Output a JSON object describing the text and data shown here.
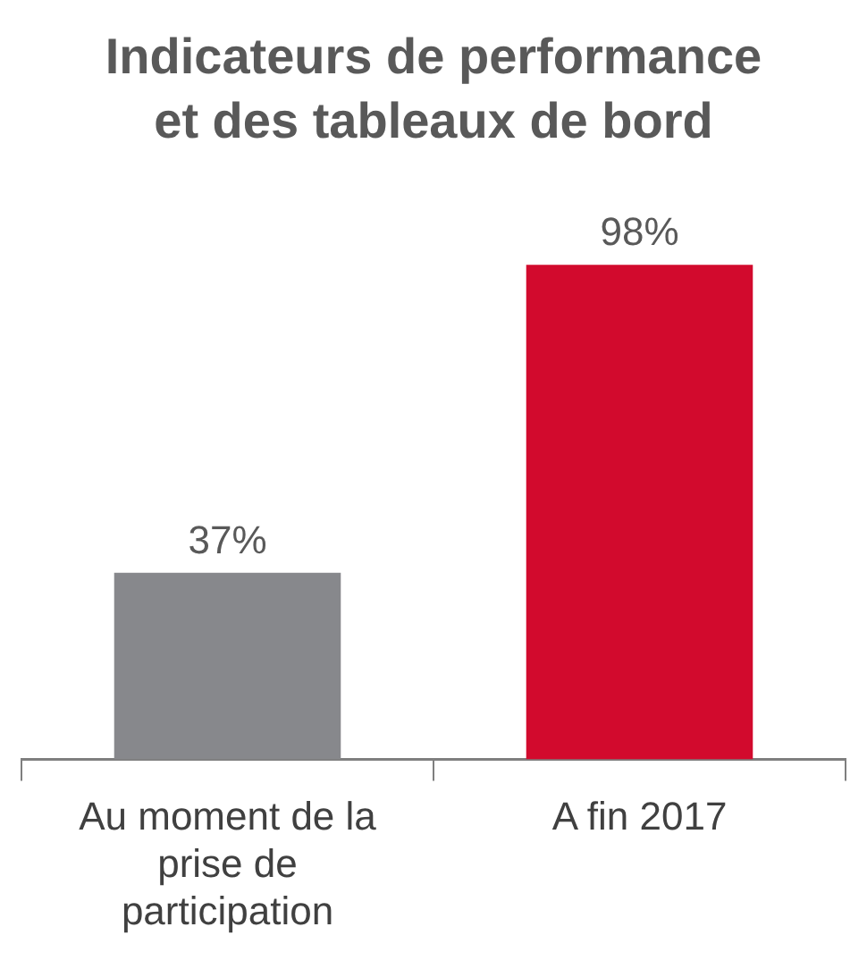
{
  "chart_data": {
    "type": "bar",
    "title": "Indicateurs de performance et des tableaux de bord",
    "categories": [
      "Au moment de la prise de participation",
      "A fin 2017"
    ],
    "values": [
      37,
      98
    ],
    "value_labels": [
      "37%",
      "98%"
    ],
    "colors": [
      "#87888c",
      "#d20a2d"
    ],
    "grid": false,
    "legend": false
  }
}
